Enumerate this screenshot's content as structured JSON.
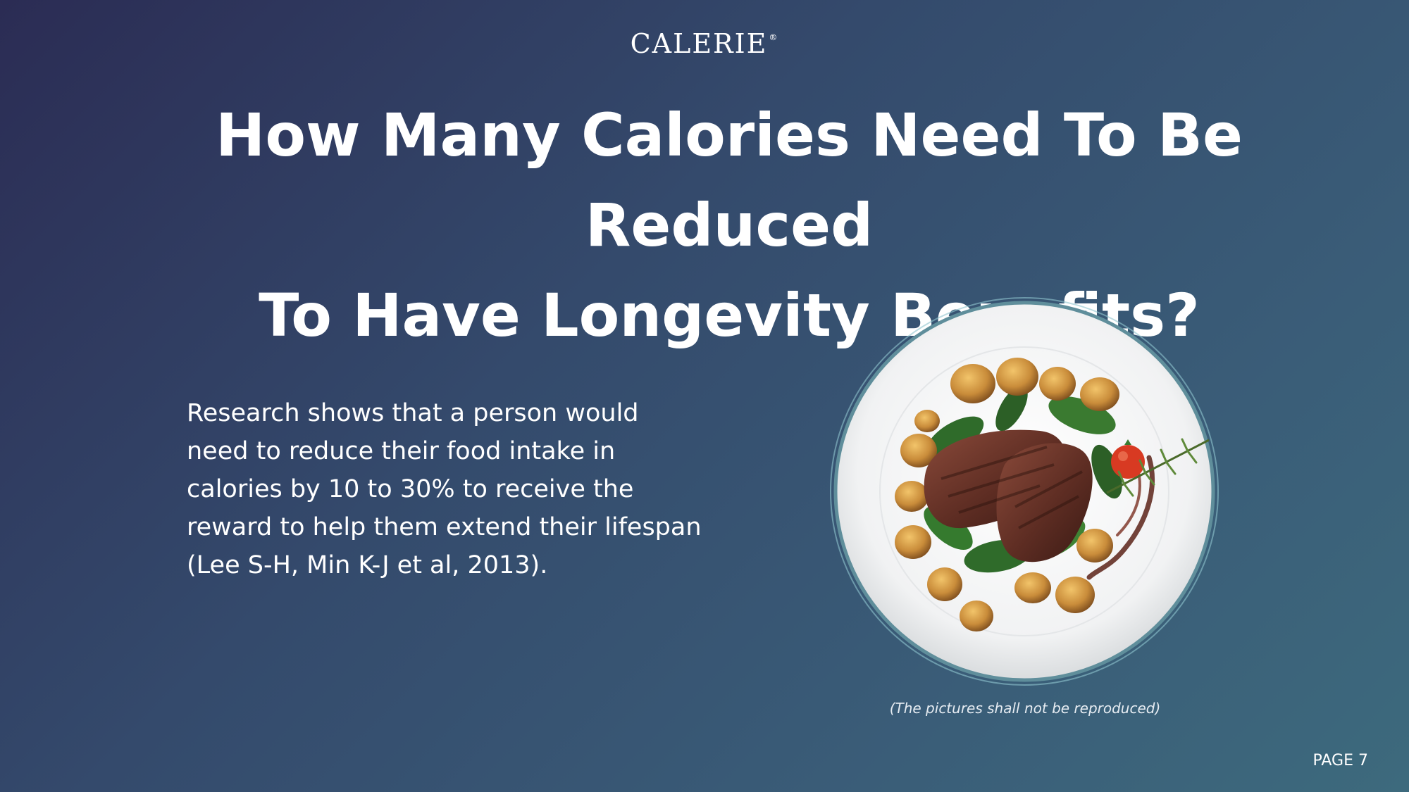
{
  "brand": {
    "name": "CALERIE",
    "mark": "®"
  },
  "slide": {
    "title_line1": "How Many Calories Need To Be Reduced",
    "title_line2": "To Have Longevity Benefits?",
    "body": "Research shows that a person would need to reduce their food intake in calories by 10 to 30% to receive the reward to help them extend their lifespan (Lee S-H, Min K-J et al, 2013).",
    "image": {
      "icon": "plate-with-steak-and-potatoes",
      "caption": "(The pictures shall not be reproduced)"
    },
    "page_label": "PAGE 7"
  },
  "colors": {
    "background_start": "#2b2c54",
    "background_end": "#3d6a7d",
    "text": "#ffffff",
    "plate_ring": "#8fc4cf"
  }
}
